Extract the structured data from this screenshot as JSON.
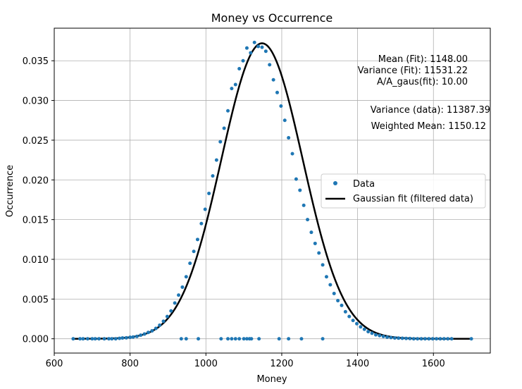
{
  "chart_data": {
    "type": "scatter",
    "title": "Money vs Occurrence",
    "xlabel": "Money",
    "ylabel": "Occurrence",
    "xlim": [
      600,
      1750
    ],
    "ylim": [
      -0.0018,
      0.0391
    ],
    "xticks": [
      600,
      800,
      1000,
      1200,
      1400,
      1600
    ],
    "yticks": [
      0.0,
      0.005,
      0.01,
      0.015,
      0.02,
      0.025,
      0.03,
      0.035
    ],
    "ytick_labels": [
      "0.000",
      "0.005",
      "0.010",
      "0.015",
      "0.020",
      "0.025",
      "0.030",
      "0.035"
    ],
    "grid": true,
    "legend_position": "center-right",
    "colors": {
      "data": "#1f77b4",
      "fit": "#000000"
    },
    "series": [
      {
        "name": "Data",
        "kind": "points",
        "points": [
          [
            650,
            0.0
          ],
          [
            668,
            0.0
          ],
          [
            676,
            0.0
          ],
          [
            688,
            0.0
          ],
          [
            700,
            0.0
          ],
          [
            708,
            0.0
          ],
          [
            718,
            0.0
          ],
          [
            732,
            0.0
          ],
          [
            744,
            0.0
          ],
          [
            752,
            0.0
          ],
          [
            762,
            0.0
          ],
          [
            772,
            5e-05
          ],
          [
            780,
            0.0001
          ],
          [
            790,
            0.00012
          ],
          [
            800,
            0.00018
          ],
          [
            808,
            0.00022
          ],
          [
            818,
            0.0003
          ],
          [
            828,
            0.00045
          ],
          [
            838,
            0.0006
          ],
          [
            848,
            0.0008
          ],
          [
            858,
            0.001
          ],
          [
            868,
            0.0013
          ],
          [
            878,
            0.0017
          ],
          [
            888,
            0.0022
          ],
          [
            898,
            0.0028
          ],
          [
            908,
            0.0035
          ],
          [
            918,
            0.0045
          ],
          [
            928,
            0.0055
          ],
          [
            938,
            0.0065
          ],
          [
            948,
            0.0078
          ],
          [
            958,
            0.0095
          ],
          [
            968,
            0.011
          ],
          [
            978,
            0.0125
          ],
          [
            988,
            0.0145
          ],
          [
            998,
            0.0163
          ],
          [
            1008,
            0.0183
          ],
          [
            1018,
            0.0205
          ],
          [
            1028,
            0.0225
          ],
          [
            1038,
            0.0248
          ],
          [
            1048,
            0.0265
          ],
          [
            1058,
            0.0287
          ],
          [
            1068,
            0.0315
          ],
          [
            1078,
            0.032
          ],
          [
            1088,
            0.034
          ],
          [
            1098,
            0.035
          ],
          [
            1108,
            0.0366
          ],
          [
            1118,
            0.036
          ],
          [
            1128,
            0.0373
          ],
          [
            1138,
            0.0368
          ],
          [
            1148,
            0.0367
          ],
          [
            1158,
            0.0362
          ],
          [
            1168,
            0.0345
          ],
          [
            1178,
            0.0326
          ],
          [
            1188,
            0.031
          ],
          [
            1198,
            0.0293
          ],
          [
            1208,
            0.0275
          ],
          [
            1218,
            0.0253
          ],
          [
            1228,
            0.0233
          ],
          [
            1238,
            0.0201
          ],
          [
            1248,
            0.0187
          ],
          [
            1258,
            0.0168
          ],
          [
            1268,
            0.015
          ],
          [
            1278,
            0.0134
          ],
          [
            1288,
            0.012
          ],
          [
            1298,
            0.0108
          ],
          [
            1308,
            0.0093
          ],
          [
            1318,
            0.0078
          ],
          [
            1328,
            0.0068
          ],
          [
            1338,
            0.0057
          ],
          [
            1348,
            0.0048
          ],
          [
            1358,
            0.0042
          ],
          [
            1368,
            0.0034
          ],
          [
            1378,
            0.0028
          ],
          [
            1388,
            0.0023
          ],
          [
            1398,
            0.0019
          ],
          [
            1408,
            0.0015
          ],
          [
            1418,
            0.0012
          ],
          [
            1428,
            0.0009
          ],
          [
            1438,
            0.0007
          ],
          [
            1448,
            0.0005
          ],
          [
            1458,
            0.0004
          ],
          [
            1468,
            0.0003
          ],
          [
            1478,
            0.0002
          ],
          [
            1488,
            0.00015
          ],
          [
            1498,
            0.0001
          ],
          [
            1508,
            8e-05
          ],
          [
            1518,
            6e-05
          ],
          [
            1528,
            4e-05
          ],
          [
            1538,
            3e-05
          ],
          [
            1548,
            0.0
          ],
          [
            1558,
            0.0
          ],
          [
            1568,
            0.0
          ],
          [
            1578,
            0.0
          ],
          [
            1588,
            0.0
          ],
          [
            1598,
            0.0
          ],
          [
            1608,
            0.0
          ],
          [
            1618,
            0.0
          ],
          [
            1628,
            0.0
          ],
          [
            1638,
            0.0
          ],
          [
            1648,
            0.0
          ],
          [
            1700,
            0.0
          ],
          [
            935,
            0.0
          ],
          [
            948,
            0.0
          ],
          [
            980,
            0.0
          ],
          [
            1040,
            0.0
          ],
          [
            1058,
            0.0
          ],
          [
            1068,
            0.0
          ],
          [
            1078,
            0.0
          ],
          [
            1088,
            0.0
          ],
          [
            1100,
            0.0
          ],
          [
            1108,
            0.0
          ],
          [
            1115,
            0.0
          ],
          [
            1120,
            0.0
          ],
          [
            1140,
            0.0
          ],
          [
            1193,
            0.0
          ],
          [
            1218,
            0.0
          ],
          [
            1252,
            0.0
          ],
          [
            1308,
            0.0
          ]
        ]
      },
      {
        "name": "Gaussian fit (filtered data)",
        "kind": "curve",
        "mean": 1148.0,
        "variance": 11531.22,
        "amplitude": 0.0372,
        "x_range": [
          650,
          1700
        ]
      }
    ],
    "annotations": {
      "fit_lines": [
        "Mean (Fit): 1148.00",
        "Variance (Fit): 11531.22",
        "A/A_gaus(fit): 10.00"
      ],
      "data_lines": [
        "Variance (data): 11387.39",
        "Weighted Mean: 1150.12"
      ]
    }
  }
}
